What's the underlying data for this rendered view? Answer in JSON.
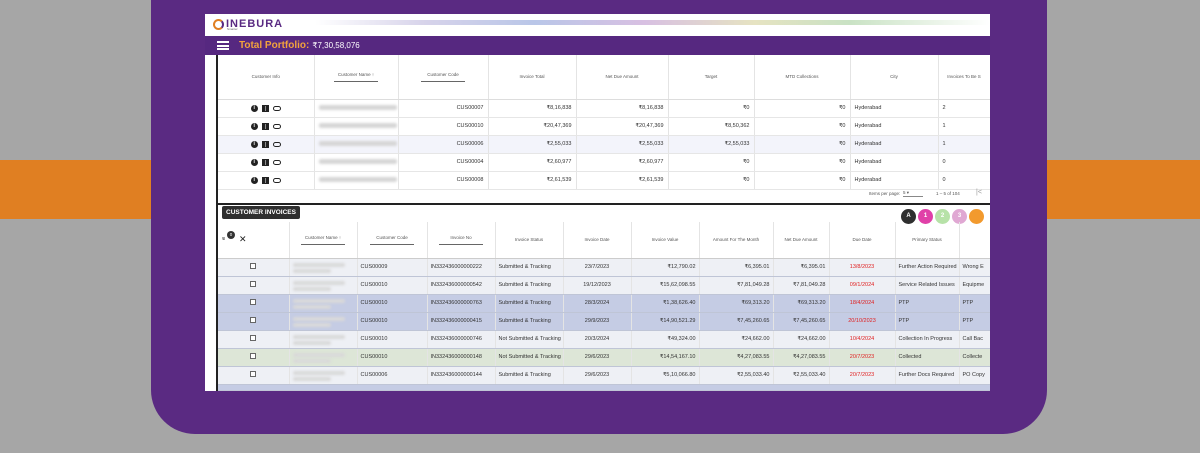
{
  "app": {
    "logo_text": "INEBURA",
    "logo_sub": "Smarter",
    "portfolio_label": "Total Portfolio:",
    "portfolio_value": "₹7,30,58,076"
  },
  "customers": {
    "columns": [
      "Customer Info",
      "Customer Name",
      "Customer Code",
      "Invoice Total",
      "Net Due Amount",
      "Target",
      "MTD Collections",
      "City",
      "Invoices To Be S"
    ],
    "sort_arrow": "↑",
    "rows": [
      {
        "code": "CUS00007",
        "invoice_total": "₹8,16,838",
        "net_due": "₹8,16,838",
        "target": "₹0",
        "mtd": "₹0",
        "city": "Hyderabad",
        "invoices": "2"
      },
      {
        "code": "CUS00010",
        "invoice_total": "₹20,47,369",
        "net_due": "₹20,47,369",
        "target": "₹8,50,362",
        "mtd": "₹0",
        "city": "Hyderabad",
        "invoices": "1"
      },
      {
        "code": "CUS00006",
        "invoice_total": "₹2,55,033",
        "net_due": "₹2,55,033",
        "target": "₹2,55,033",
        "mtd": "₹0",
        "city": "Hyderabad",
        "invoices": "1"
      },
      {
        "code": "CUS00004",
        "invoice_total": "₹2,60,977",
        "net_due": "₹2,60,977",
        "target": "₹0",
        "mtd": "₹0",
        "city": "Hyderabad",
        "invoices": "0"
      },
      {
        "code": "CUS00008",
        "invoice_total": "₹2,61,539",
        "net_due": "₹2,61,539",
        "target": "₹0",
        "mtd": "₹0",
        "city": "Hyderabad",
        "invoices": "0"
      }
    ],
    "paginator": {
      "label": "Items per page:",
      "per_page": "5",
      "range": "1 – 5 of 104",
      "prev": "|<"
    }
  },
  "invoices": {
    "title": "CUSTOMER INVOICES",
    "avatars": [
      "A",
      "1",
      "2",
      "3",
      ""
    ],
    "selected_count": "0",
    "select_icon_text": "ѡ",
    "clear_icon": "✕",
    "columns": [
      "",
      "Customer Name",
      "Customer Code",
      "Invoice No",
      "Invoice Status",
      "Invoice Date",
      "Invoice Value",
      "Amount For The Month",
      "Net Due Amount",
      "Due Date",
      "Primary Status",
      ""
    ],
    "sort_arrow": "↑",
    "rows": [
      {
        "code": "CUS00009",
        "invoice_no": "IN332436000000222",
        "status": "Submitted & Tracking",
        "date": "23/7/2023",
        "value": "₹12,790.02",
        "month_amt": "₹6,395.01",
        "net_due": "₹6,395.01",
        "due_date": "13/8/2023",
        "primary": "Further Action Required",
        "secondary": "Wrong E"
      },
      {
        "code": "CUS00010",
        "invoice_no": "IN332436000000542",
        "status": "Submitted & Tracking",
        "date": "19/12/2023",
        "value": "₹15,62,098.55",
        "month_amt": "₹7,81,049.28",
        "net_due": "₹7,81,049.28",
        "due_date": "09/1/2024",
        "primary": "Service Related Issues",
        "secondary": "Equipme"
      },
      {
        "code": "CUS00010",
        "invoice_no": "IN332436000000763",
        "status": "Submitted & Tracking",
        "date": "28/3/2024",
        "value": "₹1,38,626.40",
        "month_amt": "₹69,313.20",
        "net_due": "₹69,313.20",
        "due_date": "18/4/2024",
        "primary": "PTP",
        "secondary": "PTP"
      },
      {
        "code": "CUS00010",
        "invoice_no": "IN332436000000415",
        "status": "Submitted & Tracking",
        "date": "29/9/2023",
        "value": "₹14,90,521.29",
        "month_amt": "₹7,45,260.65",
        "net_due": "₹7,45,260.65",
        "due_date": "20/10/2023",
        "primary": "PTP",
        "secondary": "PTP"
      },
      {
        "code": "CUS00010",
        "invoice_no": "IN332436000000746",
        "status": "Not Submitted & Tracking",
        "date": "20/3/2024",
        "value": "₹49,324.00",
        "month_amt": "₹24,662.00",
        "net_due": "₹24,662.00",
        "due_date": "10/4/2024",
        "primary": "Collection In Progress",
        "secondary": "Call Bac"
      },
      {
        "code": "CUS00010",
        "invoice_no": "IN332436000000148",
        "status": "Not Submitted & Tracking",
        "date": "29/6/2023",
        "value": "₹14,54,167.10",
        "month_amt": "₹4,27,083.55",
        "net_due": "₹4,27,083.55",
        "due_date": "20/7/2023",
        "primary": "Collected",
        "secondary": "Collecte"
      },
      {
        "code": "CUS00006",
        "invoice_no": "IN332436000000144",
        "status": "Submitted & Tracking",
        "date": "29/6/2023",
        "value": "₹5,10,066.80",
        "month_amt": "₹2,55,033.40",
        "net_due": "₹2,55,033.40",
        "due_date": "20/7/2023",
        "primary": "Further Docs Required",
        "secondary": "PO Copy"
      }
    ]
  },
  "colors": {
    "brand_purple": "#5a2a82",
    "accent_orange": "#e07f22",
    "due_red": "#e02020"
  },
  "icons": [
    "info-icon",
    "ledger-icon",
    "link-icon",
    "menu-icon"
  ]
}
